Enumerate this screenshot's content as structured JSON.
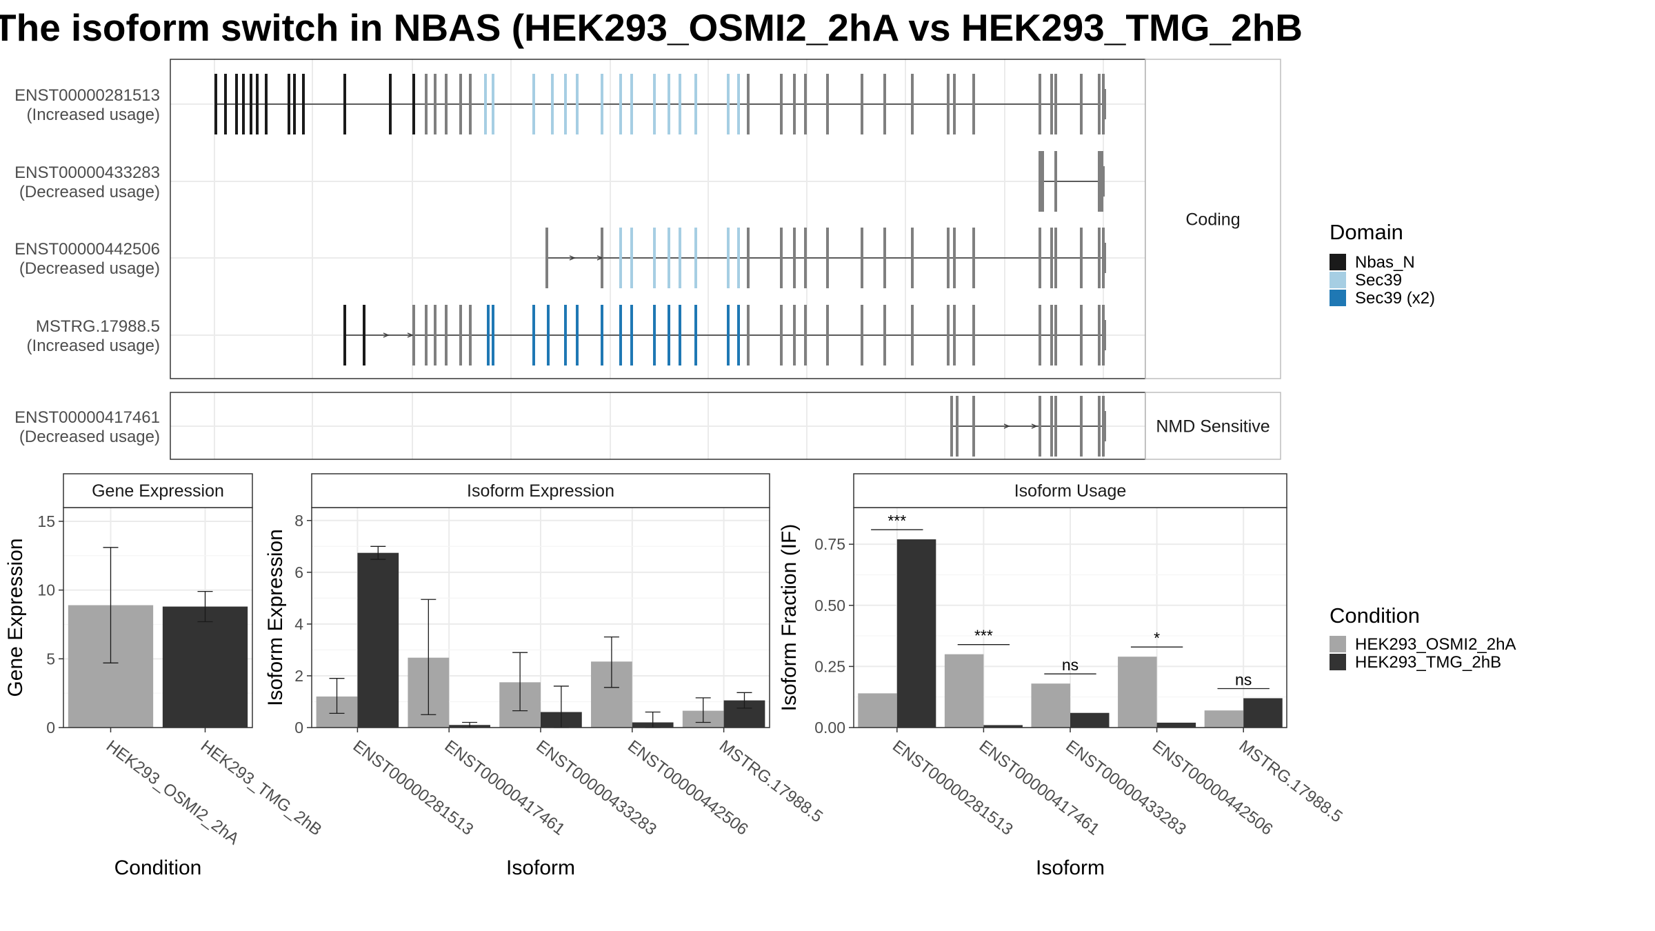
{
  "title": "The isoform switch in NBAS (HEK293_OSMI2_2hA vs HEK293_TMG_2hB",
  "colors": {
    "nbas_n": "#1a1a1a",
    "sec39": "#a6cee3",
    "sec39_x2": "#1f78b4",
    "no_domain": "#7f7f7f",
    "cond_a": "#a6a6a6",
    "cond_b": "#333333"
  },
  "chart_data": [
    {
      "type": "gene-structure",
      "facets": [
        {
          "label": "Coding",
          "rows": [
            {
              "label1": "ENST00000281513",
              "label2": "(Increased usage)"
            },
            {
              "label1": "ENST00000433283",
              "label2": "(Decreased usage)"
            },
            {
              "label1": "ENST00000442506",
              "label2": "(Decreased usage)"
            },
            {
              "label1": "MSTRG.17988.5",
              "label2": "(Increased usage)"
            }
          ]
        },
        {
          "label": "NMD Sensitive",
          "rows": [
            {
              "label1": "ENST00000417461",
              "label2": "(Decreased usage)"
            }
          ]
        }
      ],
      "legend_title": "Domain",
      "legend": [
        {
          "name": "Nbas_N",
          "color": "#1a1a1a"
        },
        {
          "name": "Sec39",
          "color": "#a6cee3"
        },
        {
          "name": "Sec39 (x2)",
          "color": "#1f78b4"
        }
      ]
    },
    {
      "type": "bar",
      "facet": "Gene Expression",
      "xlabel": "Condition",
      "ylabel": "Gene Expression",
      "ylim": [
        0,
        16
      ],
      "yticks": [
        0,
        5,
        10,
        15
      ],
      "categories": [
        "HEK293_OSMI2_2hA",
        "HEK293_TMG_2hB"
      ],
      "values": [
        8.9,
        8.8
      ],
      "errors": [
        [
          4.7,
          13.1
        ],
        [
          7.7,
          9.9
        ]
      ]
    },
    {
      "type": "bar",
      "facet": "Isoform Expression",
      "xlabel": "Isoform",
      "ylabel": "Isoform Expression",
      "ylim": [
        0,
        8.5
      ],
      "yticks": [
        0,
        2,
        4,
        6,
        8
      ],
      "categories": [
        "ENST00000281513",
        "ENST00000417461",
        "ENST00000433283",
        "ENST00000442506",
        "MSTRG.17988.5"
      ],
      "series": [
        {
          "name": "HEK293_OSMI2_2hA",
          "values": [
            1.2,
            2.7,
            1.75,
            2.55,
            0.65
          ],
          "errors": [
            [
              0.55,
              1.9
            ],
            [
              0.5,
              4.95
            ],
            [
              0.65,
              2.9
            ],
            [
              1.55,
              3.5
            ],
            [
              0.2,
              1.15
            ]
          ]
        },
        {
          "name": "HEK293_TMG_2hB",
          "values": [
            6.75,
            0.1,
            0.6,
            0.2,
            1.05
          ],
          "errors": [
            [
              6.5,
              7.0
            ],
            [
              0.0,
              0.2
            ],
            [
              0.0,
              1.6
            ],
            [
              0.0,
              0.6
            ],
            [
              0.75,
              1.35
            ]
          ]
        }
      ]
    },
    {
      "type": "bar",
      "facet": "Isoform Usage",
      "xlabel": "Isoform",
      "ylabel": "Isoform Fraction (IF)",
      "ylim": [
        0,
        0.9
      ],
      "yticks": [
        "0.00",
        "0.25",
        "0.50",
        "0.75"
      ],
      "categories": [
        "ENST00000281513",
        "ENST00000417461",
        "ENST00000433283",
        "ENST00000442506",
        "MSTRG.17988.5"
      ],
      "series": [
        {
          "name": "HEK293_OSMI2_2hA",
          "values": [
            0.14,
            0.3,
            0.18,
            0.29,
            0.07
          ]
        },
        {
          "name": "HEK293_TMG_2hB",
          "values": [
            0.77,
            0.01,
            0.06,
            0.02,
            0.12
          ]
        }
      ],
      "significance": [
        "***",
        "***",
        "ns",
        "*",
        "ns"
      ],
      "legend_title": "Condition",
      "legend": [
        {
          "name": "HEK293_OSMI2_2hA",
          "color": "#a6a6a6"
        },
        {
          "name": "HEK293_TMG_2hB",
          "color": "#333333"
        }
      ]
    }
  ]
}
